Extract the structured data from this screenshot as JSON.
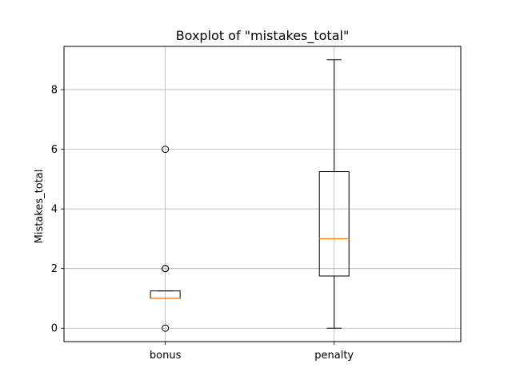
{
  "chart_data": {
    "type": "boxplot",
    "title": "Boxplot of \"mistakes_total\"",
    "xlabel": "",
    "ylabel": "Mistakes_total",
    "ylim": [
      -0.45,
      9.45
    ],
    "yticks": [
      0,
      2,
      4,
      6,
      8
    ],
    "grid": true,
    "categories": [
      "bonus",
      "penalty"
    ],
    "boxes": [
      {
        "name": "bonus",
        "whisker_low": 1,
        "q1": 1,
        "median": 1,
        "q3": 1.25,
        "whisker_high": 1.25,
        "outliers": [
          0,
          2,
          2,
          6
        ]
      },
      {
        "name": "penalty",
        "whisker_low": 0,
        "q1": 1.75,
        "median": 3,
        "q3": 5.25,
        "whisker_high": 9,
        "outliers": []
      }
    ],
    "colors": {
      "median": "#ff7f0e",
      "box": "#000000",
      "grid": "#b0b0b0"
    }
  }
}
